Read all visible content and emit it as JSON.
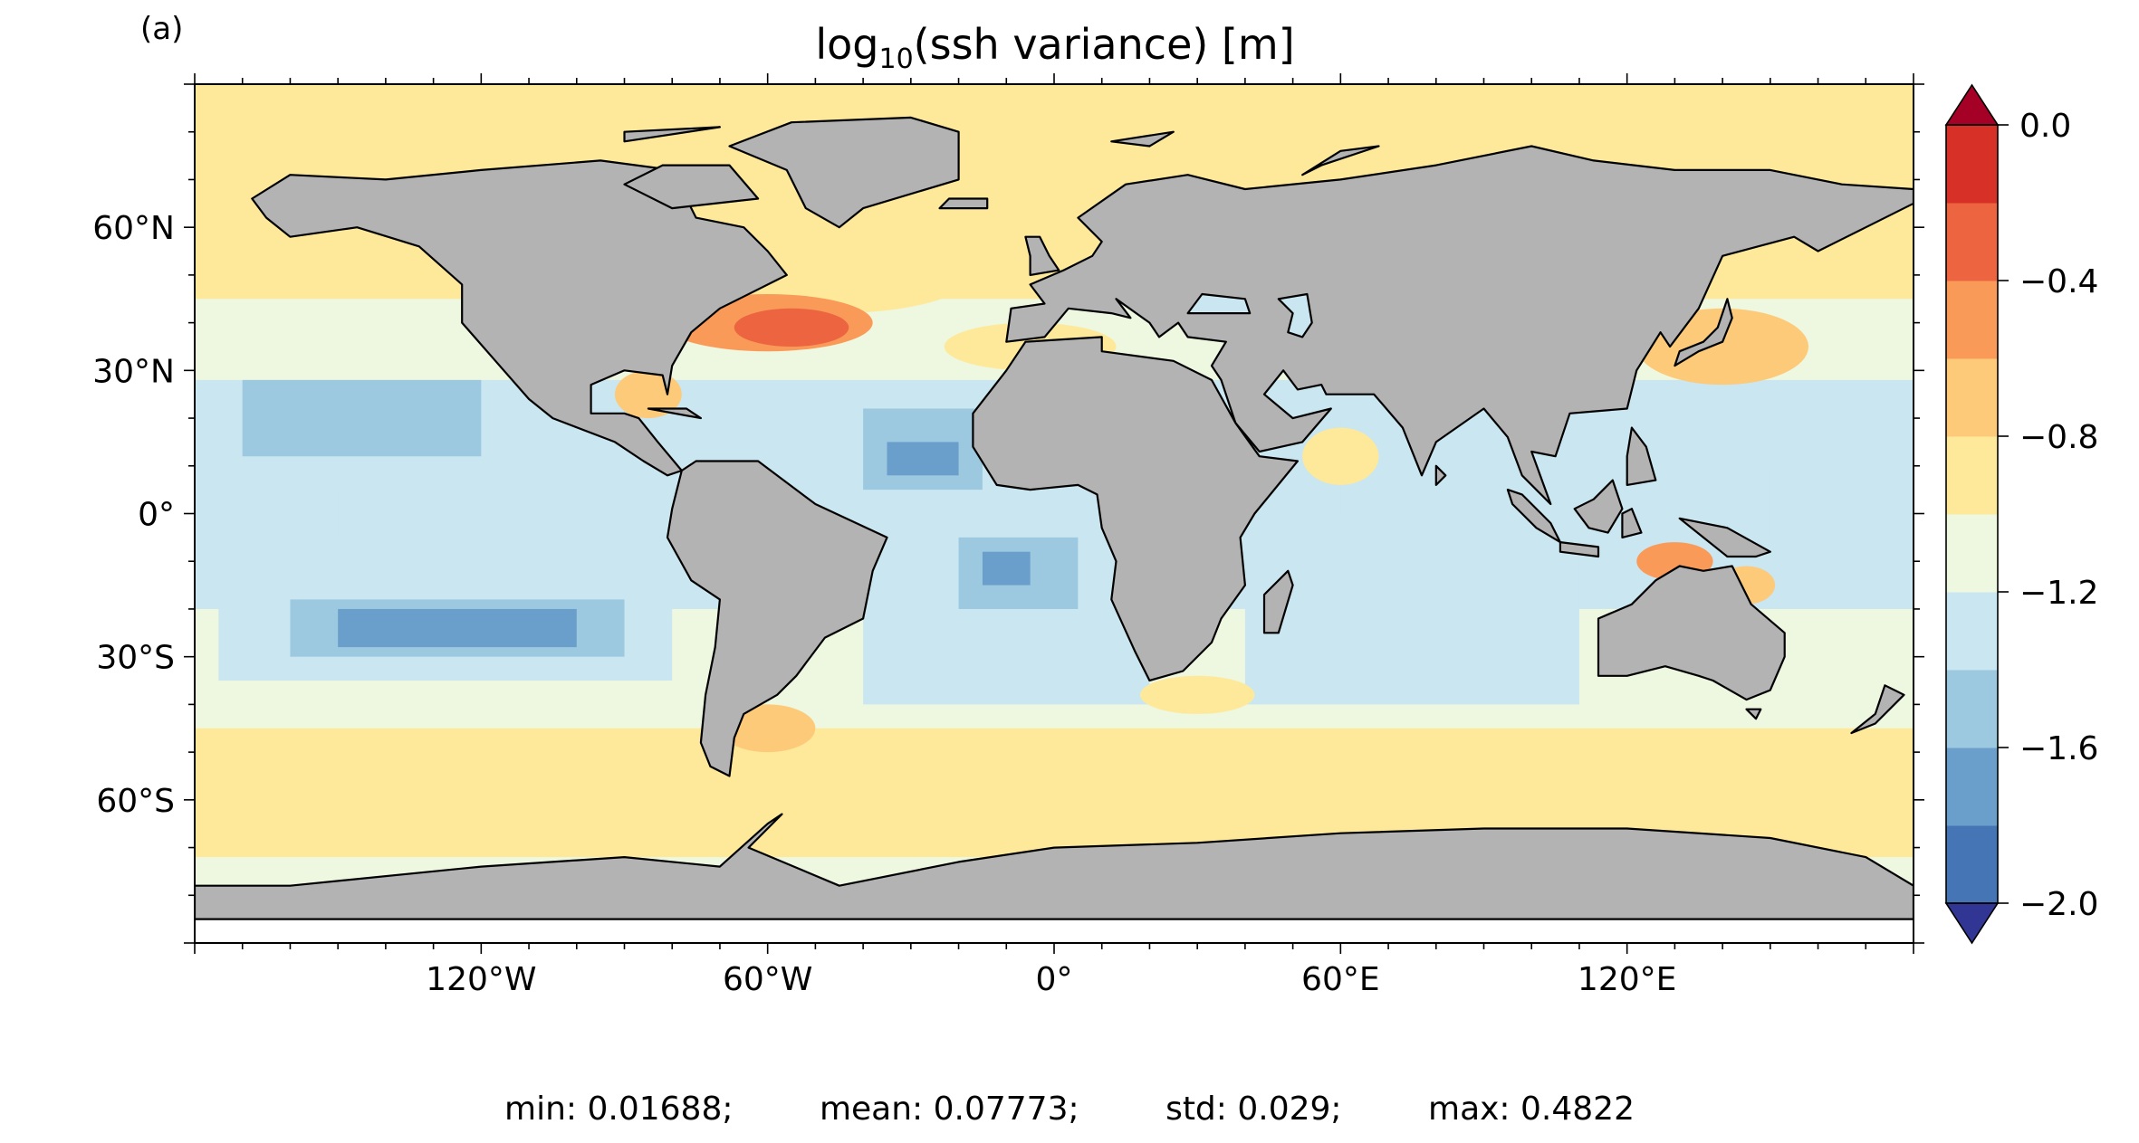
{
  "panel_label": "(a)",
  "title": {
    "prefix": "log",
    "subscript": "10",
    "suffix": "(ssh variance) [m]"
  },
  "map": {
    "projection": "PlateCarree",
    "extent": {
      "lon": [
        -180,
        180
      ],
      "lat": [
        -90,
        90
      ]
    },
    "land_color": "#b3b3b3",
    "coastline_color": "#000000",
    "x_ticks": [
      {
        "lon": -120,
        "label": "120°W"
      },
      {
        "lon": -60,
        "label": "60°W"
      },
      {
        "lon": 0,
        "label": "0°"
      },
      {
        "lon": 60,
        "label": "60°E"
      },
      {
        "lon": 120,
        "label": "120°E"
      }
    ],
    "y_ticks": [
      {
        "lat": 60,
        "label": "60°N"
      },
      {
        "lat": 30,
        "label": "30°N"
      },
      {
        "lat": 0,
        "label": "0°"
      },
      {
        "lat": -30,
        "label": "30°S"
      },
      {
        "lat": -60,
        "label": "60°S"
      }
    ]
  },
  "colorbar": {
    "levels": [
      -2.0,
      -1.8,
      -1.6,
      -1.4,
      -1.2,
      -1.0,
      -0.8,
      -0.6,
      -0.4,
      -0.2,
      0.0
    ],
    "colors": [
      "#4575b4",
      "#6a9fcb",
      "#9cc9e0",
      "#c9e6f1",
      "#eef7df",
      "#fee99a",
      "#fdca79",
      "#fa9a58",
      "#ec6540",
      "#d73027"
    ],
    "under_color": "#313695",
    "over_color": "#a50026",
    "tick_values": [
      0.0,
      -0.4,
      -0.8,
      -1.2,
      -1.6,
      -2.0
    ],
    "tick_labels": [
      "0.0",
      "−0.4",
      "−0.8",
      "−1.2",
      "−1.6",
      "−2.0"
    ],
    "extend": "both"
  },
  "stats": {
    "min": "min: 0.01688;",
    "mean": "mean: 0.07773;",
    "std": "std: 0.029;",
    "max": "max: 0.4822"
  }
}
